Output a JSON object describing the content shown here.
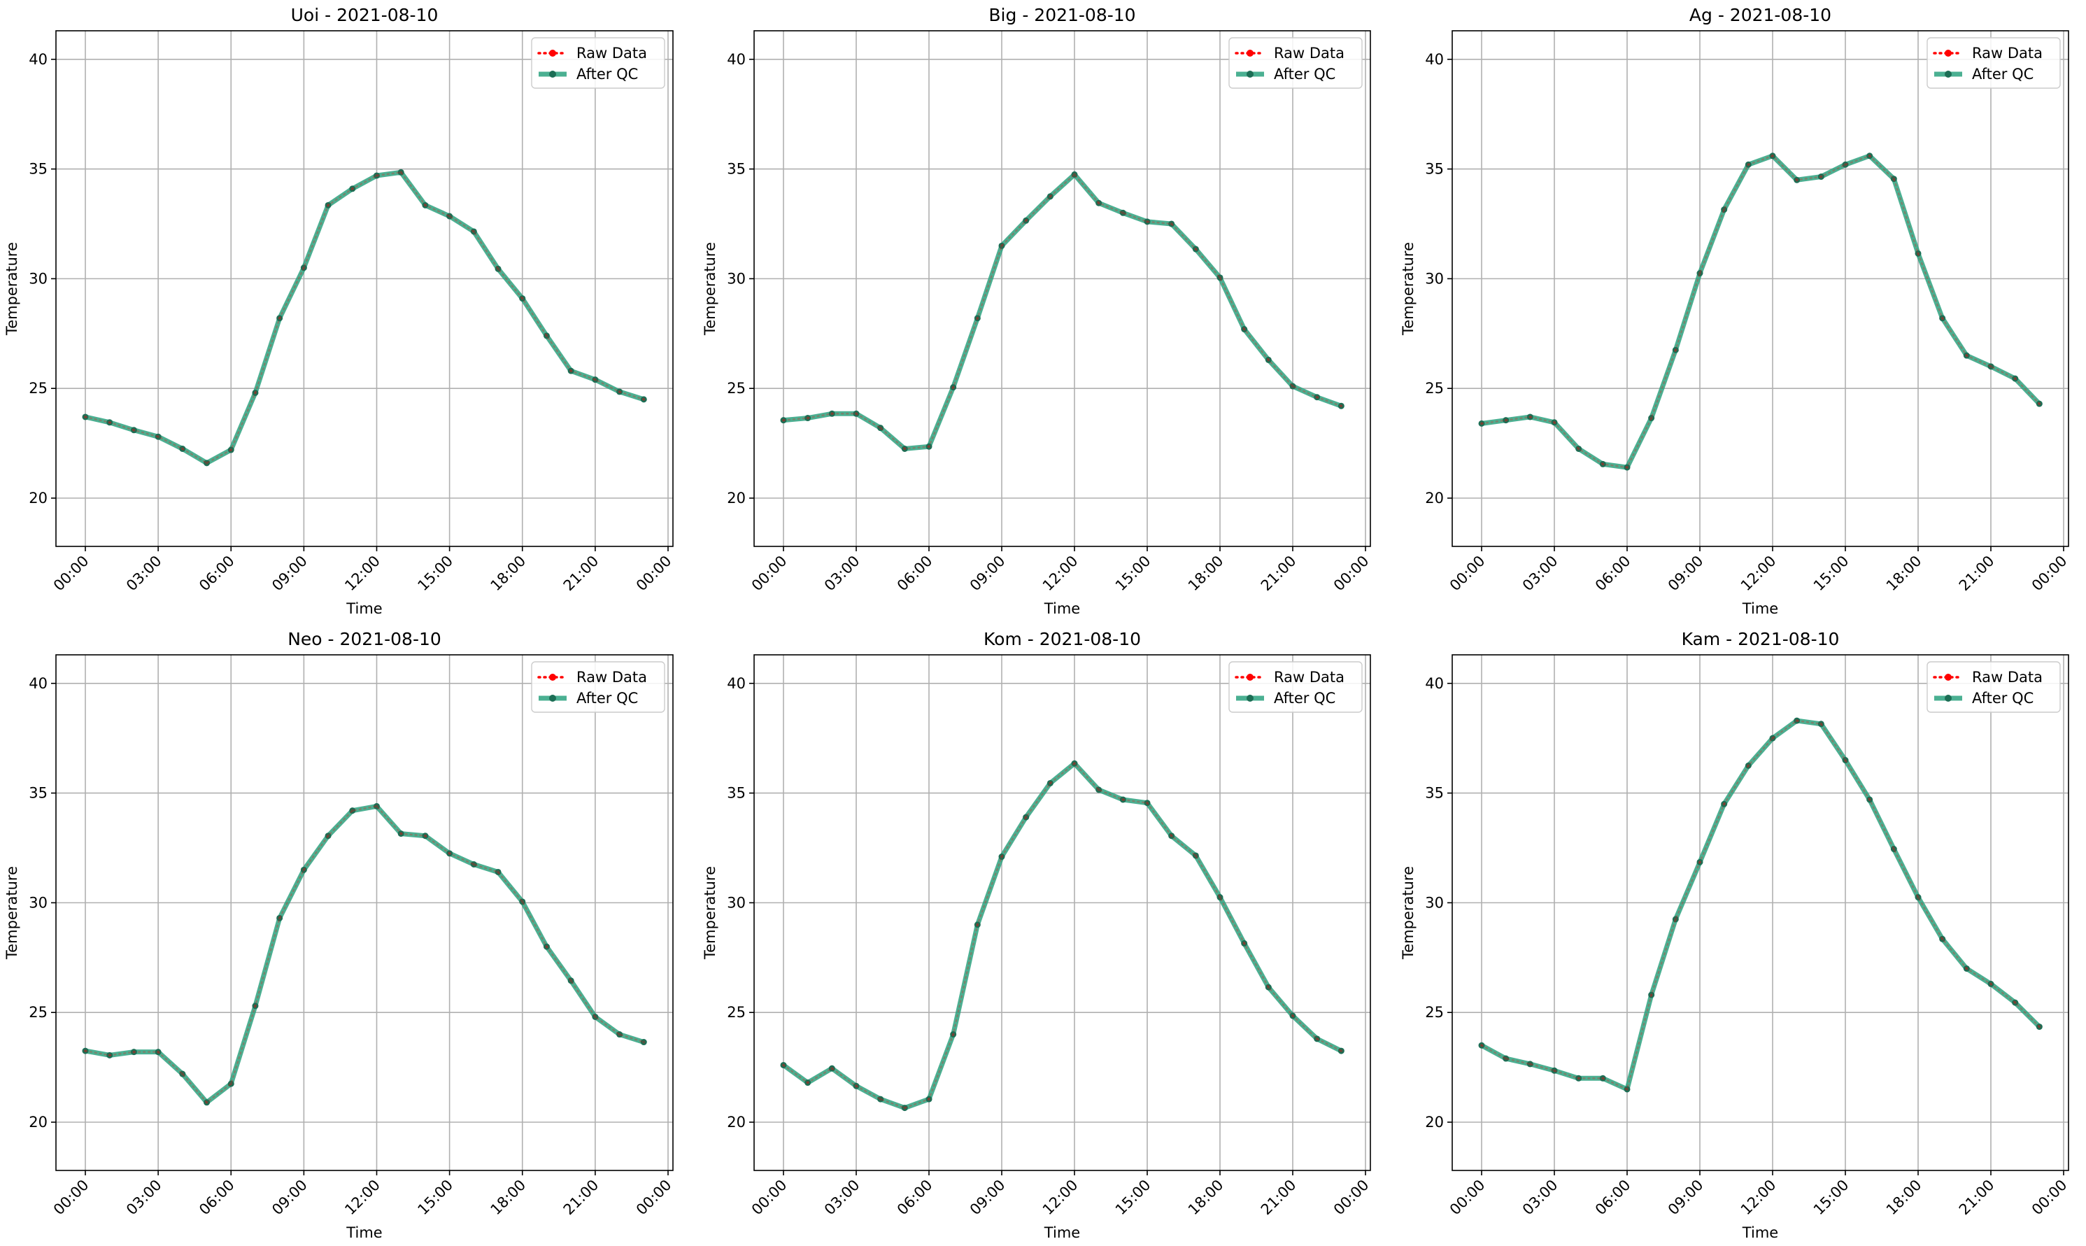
{
  "legend": {
    "raw_label": "Raw Data",
    "qc_label": "After QC",
    "placement": "upper right"
  },
  "colors": {
    "raw": "#ff0000",
    "qc": "#2ca27f",
    "qc_marker": "#1c6e55",
    "grid": "#b0b0b0",
    "axes": "#000000"
  },
  "axes_common": {
    "xlabel": "Time",
    "ylabel": "Temperature",
    "xticks": [
      "00:00",
      "03:00",
      "06:00",
      "09:00",
      "12:00",
      "15:00",
      "18:00",
      "21:00",
      "00:00"
    ],
    "yticks": [
      "20",
      "25",
      "30",
      "35",
      "40"
    ]
  },
  "chart_data": [
    {
      "type": "line",
      "title": "Uoi - 2021-08-10",
      "xlabel": "Time",
      "ylabel": "Temperature",
      "ylim": [
        17.8,
        41.3
      ],
      "grid": true,
      "x": [
        "00:00",
        "01:00",
        "02:00",
        "03:00",
        "04:00",
        "05:00",
        "06:00",
        "07:00",
        "08:00",
        "09:00",
        "10:00",
        "11:00",
        "12:00",
        "13:00",
        "14:00",
        "15:00",
        "16:00",
        "17:00",
        "18:00",
        "19:00",
        "20:00",
        "21:00",
        "22:00",
        "23:00"
      ],
      "series": [
        {
          "name": "Raw Data",
          "values": [
            23.7,
            23.45,
            23.1,
            22.8,
            22.25,
            21.6,
            22.2,
            24.8,
            28.2,
            30.5,
            33.35,
            34.1,
            34.7,
            34.85,
            33.35,
            32.85,
            32.15,
            30.45,
            29.1,
            27.4,
            25.8,
            25.4,
            24.85,
            24.5
          ]
        },
        {
          "name": "After QC",
          "values": [
            23.7,
            23.45,
            23.1,
            22.8,
            22.25,
            21.6,
            22.2,
            24.8,
            28.2,
            30.5,
            33.35,
            34.1,
            34.7,
            34.85,
            33.35,
            32.85,
            32.15,
            30.45,
            29.1,
            27.4,
            25.8,
            25.4,
            24.85,
            24.5
          ]
        }
      ]
    },
    {
      "type": "line",
      "title": "Big - 2021-08-10",
      "xlabel": "Time",
      "ylabel": "Temperature",
      "ylim": [
        17.8,
        41.3
      ],
      "grid": true,
      "x": [
        "00:00",
        "01:00",
        "02:00",
        "03:00",
        "04:00",
        "05:00",
        "06:00",
        "07:00",
        "08:00",
        "09:00",
        "10:00",
        "11:00",
        "12:00",
        "13:00",
        "14:00",
        "15:00",
        "16:00",
        "17:00",
        "18:00",
        "19:00",
        "20:00",
        "21:00",
        "22:00",
        "23:00"
      ],
      "series": [
        {
          "name": "Raw Data",
          "values": [
            23.55,
            23.65,
            23.85,
            23.85,
            23.2,
            22.25,
            22.35,
            25.05,
            28.2,
            31.5,
            32.65,
            33.75,
            34.75,
            33.45,
            33.0,
            32.6,
            32.5,
            31.35,
            30.05,
            27.7,
            26.3,
            25.1,
            24.6,
            24.2
          ]
        },
        {
          "name": "After QC",
          "values": [
            23.55,
            23.65,
            23.85,
            23.85,
            23.2,
            22.25,
            22.35,
            25.05,
            28.2,
            31.5,
            32.65,
            33.75,
            34.75,
            33.45,
            33.0,
            32.6,
            32.5,
            31.35,
            30.05,
            27.7,
            26.3,
            25.1,
            24.6,
            24.2
          ]
        }
      ]
    },
    {
      "type": "line",
      "title": "Ag - 2021-08-10",
      "xlabel": "Time",
      "ylabel": "Temperature",
      "ylim": [
        17.8,
        41.3
      ],
      "grid": true,
      "x": [
        "00:00",
        "01:00",
        "02:00",
        "03:00",
        "04:00",
        "05:00",
        "06:00",
        "07:00",
        "08:00",
        "09:00",
        "10:00",
        "11:00",
        "12:00",
        "13:00",
        "14:00",
        "15:00",
        "16:00",
        "17:00",
        "18:00",
        "19:00",
        "20:00",
        "21:00",
        "22:00",
        "23:00"
      ],
      "series": [
        {
          "name": "Raw Data",
          "values": [
            23.4,
            23.55,
            23.7,
            23.45,
            22.25,
            21.55,
            21.4,
            23.65,
            26.75,
            30.25,
            33.15,
            35.2,
            35.6,
            34.5,
            34.65,
            35.2,
            35.6,
            34.55,
            31.15,
            28.2,
            26.5,
            26.0,
            25.45,
            24.3
          ]
        },
        {
          "name": "After QC",
          "values": [
            23.4,
            23.55,
            23.7,
            23.45,
            22.25,
            21.55,
            21.4,
            23.65,
            26.75,
            30.25,
            33.15,
            35.2,
            35.6,
            34.5,
            34.65,
            35.2,
            35.6,
            34.55,
            31.15,
            28.2,
            26.5,
            26.0,
            25.45,
            24.3
          ]
        }
      ]
    },
    {
      "type": "line",
      "title": "Neo - 2021-08-10",
      "xlabel": "Time",
      "ylabel": "Temperature",
      "ylim": [
        17.8,
        41.3
      ],
      "grid": true,
      "x": [
        "00:00",
        "01:00",
        "02:00",
        "03:00",
        "04:00",
        "05:00",
        "06:00",
        "07:00",
        "08:00",
        "09:00",
        "10:00",
        "11:00",
        "12:00",
        "13:00",
        "14:00",
        "15:00",
        "16:00",
        "17:00",
        "18:00",
        "19:00",
        "20:00",
        "21:00",
        "22:00",
        "23:00"
      ],
      "series": [
        {
          "name": "Raw Data",
          "values": [
            23.25,
            23.05,
            23.2,
            23.2,
            22.2,
            20.9,
            21.75,
            25.3,
            29.3,
            31.5,
            33.05,
            34.2,
            34.4,
            33.15,
            33.05,
            32.25,
            31.75,
            31.4,
            30.05,
            28.0,
            26.45,
            24.8,
            24.0,
            23.65
          ]
        },
        {
          "name": "After QC",
          "values": [
            23.25,
            23.05,
            23.2,
            23.2,
            22.2,
            20.9,
            21.75,
            25.3,
            29.3,
            31.5,
            33.05,
            34.2,
            34.4,
            33.15,
            33.05,
            32.25,
            31.75,
            31.4,
            30.05,
            28.0,
            26.45,
            24.8,
            24.0,
            23.65
          ]
        }
      ]
    },
    {
      "type": "line",
      "title": "Kom - 2021-08-10",
      "xlabel": "Time",
      "ylabel": "Temperature",
      "ylim": [
        17.8,
        41.3
      ],
      "grid": true,
      "x": [
        "00:00",
        "01:00",
        "02:00",
        "03:00",
        "04:00",
        "05:00",
        "06:00",
        "07:00",
        "08:00",
        "09:00",
        "10:00",
        "11:00",
        "12:00",
        "13:00",
        "14:00",
        "15:00",
        "16:00",
        "17:00",
        "18:00",
        "19:00",
        "20:00",
        "21:00",
        "22:00",
        "23:00"
      ],
      "series": [
        {
          "name": "Raw Data",
          "values": [
            22.6,
            21.8,
            22.45,
            21.65,
            21.05,
            20.65,
            21.05,
            24.0,
            29.0,
            32.1,
            33.9,
            35.45,
            36.35,
            35.15,
            34.7,
            34.55,
            33.05,
            32.15,
            30.25,
            28.15,
            26.15,
            24.85,
            23.8,
            23.25
          ]
        },
        {
          "name": "After QC",
          "values": [
            22.6,
            21.8,
            22.45,
            21.65,
            21.05,
            20.65,
            21.05,
            24.0,
            29.0,
            32.1,
            33.9,
            35.45,
            36.35,
            35.15,
            34.7,
            34.55,
            33.05,
            32.15,
            30.25,
            28.15,
            26.15,
            24.85,
            23.8,
            23.25
          ]
        }
      ]
    },
    {
      "type": "line",
      "title": "Kam - 2021-08-10",
      "xlabel": "Time",
      "ylabel": "Temperature",
      "ylim": [
        17.8,
        41.3
      ],
      "grid": true,
      "x": [
        "00:00",
        "01:00",
        "02:00",
        "03:00",
        "04:00",
        "05:00",
        "06:00",
        "07:00",
        "08:00",
        "09:00",
        "10:00",
        "11:00",
        "12:00",
        "13:00",
        "14:00",
        "15:00",
        "16:00",
        "17:00",
        "18:00",
        "19:00",
        "20:00",
        "21:00",
        "22:00",
        "23:00"
      ],
      "series": [
        {
          "name": "Raw Data",
          "values": [
            23.5,
            22.9,
            22.65,
            22.35,
            22.0,
            22.0,
            21.5,
            25.8,
            29.25,
            31.85,
            34.5,
            36.25,
            37.5,
            38.3,
            38.15,
            36.5,
            34.7,
            32.45,
            30.25,
            28.35,
            27.0,
            26.3,
            25.45,
            24.35
          ]
        },
        {
          "name": "After QC",
          "values": [
            23.5,
            22.9,
            22.65,
            22.35,
            22.0,
            22.0,
            21.5,
            25.8,
            29.25,
            31.85,
            34.5,
            36.25,
            37.5,
            38.3,
            38.15,
            36.5,
            34.7,
            32.45,
            30.25,
            28.35,
            27.0,
            26.3,
            25.45,
            24.35
          ]
        }
      ]
    }
  ]
}
